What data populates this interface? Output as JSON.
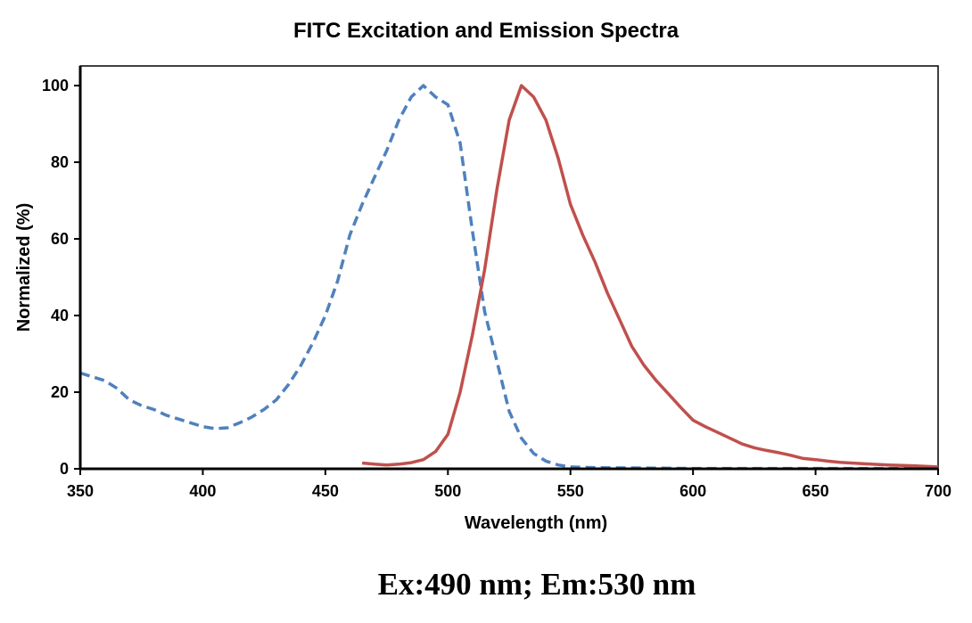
{
  "chart_data": {
    "type": "line",
    "title": "FITC Excitation and Emission Spectra",
    "xlabel": "Wavelength (nm)",
    "ylabel": "Normalized (%)",
    "caption": "Ex:490 nm; Em:530 nm",
    "xlim": [
      350,
      700
    ],
    "ylim": [
      0,
      105
    ],
    "xticks": [
      "350",
      "400",
      "450",
      "500",
      "550",
      "600",
      "650",
      "700"
    ],
    "yticks": [
      "0",
      "20",
      "40",
      "60",
      "80",
      "100"
    ],
    "grid": false,
    "legend": "none",
    "series": [
      {
        "style": "dashed",
        "color": "#4F81BD",
        "x": [
          350,
          355,
          360,
          365,
          370,
          375,
          380,
          385,
          390,
          395,
          400,
          405,
          410,
          415,
          420,
          425,
          430,
          435,
          440,
          445,
          450,
          455,
          460,
          465,
          470,
          475,
          480,
          485,
          490,
          495,
          500,
          505,
          510,
          515,
          520,
          525,
          530,
          535,
          540,
          545,
          550,
          560,
          600,
          650,
          700
        ],
        "y": [
          25,
          24,
          23,
          21,
          18,
          16.5,
          15.5,
          14,
          13,
          12,
          11,
          10.5,
          10.7,
          12,
          13.5,
          15.5,
          18,
          22,
          27,
          33,
          40,
          49,
          61,
          69,
          76,
          83,
          91,
          97,
          100,
          97,
          95,
          85,
          62,
          41,
          28,
          15,
          8,
          4,
          2,
          1,
          0.5,
          0.3,
          0.1,
          0.1,
          0.1
        ]
      },
      {
        "style": "solid",
        "color": "#C0504D",
        "x": [
          465,
          470,
          475,
          480,
          485,
          490,
          495,
          500,
          505,
          510,
          515,
          520,
          525,
          530,
          535,
          540,
          545,
          550,
          555,
          560,
          565,
          570,
          575,
          580,
          585,
          590,
          595,
          600,
          605,
          610,
          615,
          620,
          625,
          630,
          635,
          640,
          645,
          650,
          655,
          660,
          670,
          680,
          690,
          700
        ],
        "y": [
          1.5,
          1.2,
          1.0,
          1.2,
          1.6,
          2.4,
          4.5,
          9,
          20,
          35,
          52,
          73,
          91,
          100,
          97,
          91,
          81,
          69,
          61,
          54,
          46,
          39,
          32,
          27,
          23,
          19.5,
          16,
          12.7,
          11,
          9.5,
          8,
          6.5,
          5.5,
          4.8,
          4.2,
          3.5,
          2.7,
          2.4,
          2.0,
          1.7,
          1.3,
          1.0,
          0.8,
          0.5
        ]
      }
    ]
  }
}
